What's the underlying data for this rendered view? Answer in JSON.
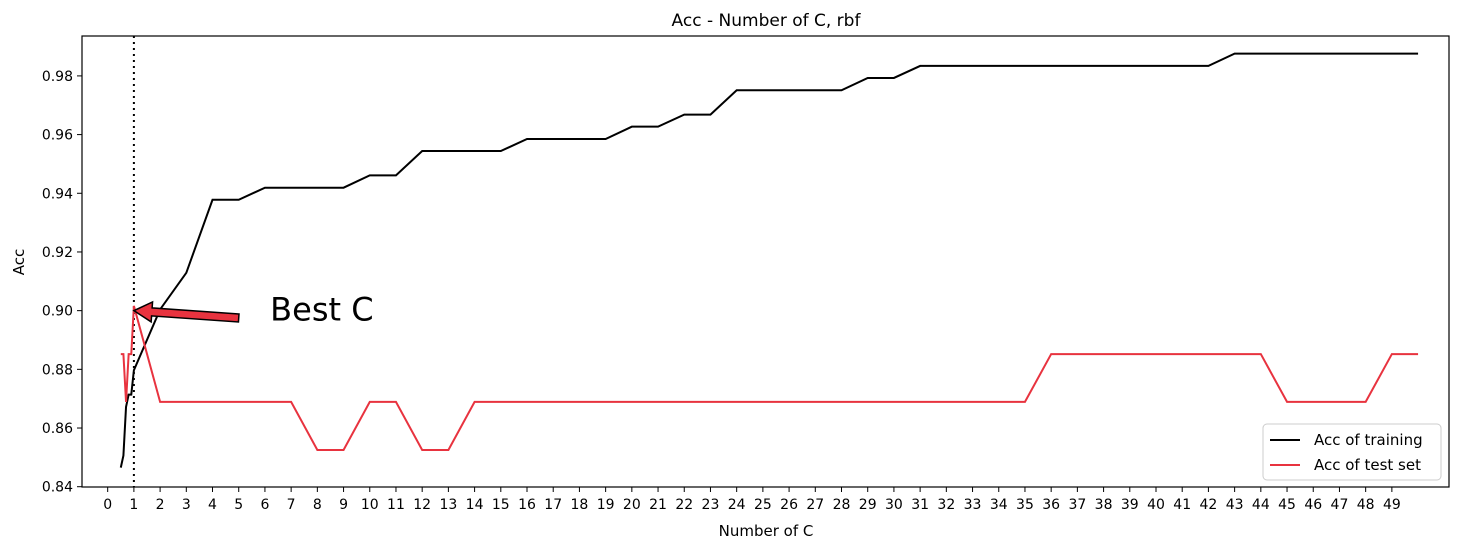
{
  "chart_data": {
    "type": "line",
    "title": "Acc - Number of C, rbf",
    "xlabel": "Number of C",
    "ylabel": "Acc",
    "xlim": [
      -0.98,
      51.18
    ],
    "ylim": [
      0.8399,
      0.9936
    ],
    "xticks": [
      0,
      1,
      2,
      3,
      4,
      5,
      6,
      7,
      8,
      9,
      10,
      11,
      12,
      13,
      14,
      15,
      16,
      17,
      18,
      19,
      20,
      21,
      22,
      23,
      24,
      25,
      26,
      27,
      28,
      29,
      30,
      31,
      32,
      33,
      34,
      35,
      36,
      37,
      38,
      39,
      40,
      41,
      42,
      43,
      44,
      45,
      46,
      47,
      48,
      49
    ],
    "yticks": [
      0.84,
      0.86,
      0.88,
      0.9,
      0.92,
      0.94,
      0.96,
      0.98
    ],
    "ytick_labels": [
      "0.84",
      "0.86",
      "0.88",
      "0.90",
      "0.92",
      "0.94",
      "0.96",
      "0.98"
    ],
    "grid": false,
    "legend_position": "lower-right",
    "x": [
      0.5,
      0.6,
      0.7,
      0.8,
      0.9,
      1,
      2,
      3,
      4,
      5,
      6,
      7,
      8,
      9,
      10,
      11,
      12,
      13,
      14,
      15,
      16,
      17,
      18,
      19,
      20,
      21,
      22,
      23,
      24,
      25,
      26,
      27,
      28,
      29,
      30,
      31,
      32,
      33,
      34,
      35,
      36,
      37,
      38,
      39,
      40,
      41,
      42,
      43,
      44,
      45,
      46,
      47,
      48,
      49,
      50
    ],
    "series": [
      {
        "name": "Acc of training",
        "color": "#000000",
        "values": [
          0.8465,
          0.8506,
          0.8672,
          0.8714,
          0.8714,
          0.8797,
          0.9004,
          0.9129,
          0.9378,
          0.9378,
          0.9419,
          0.9419,
          0.9419,
          0.9419,
          0.9461,
          0.9461,
          0.9544,
          0.9544,
          0.9544,
          0.9544,
          0.9585,
          0.9585,
          0.9585,
          0.9585,
          0.9627,
          0.9627,
          0.9668,
          0.9668,
          0.9751,
          0.9751,
          0.9751,
          0.9751,
          0.9751,
          0.9793,
          0.9793,
          0.9834,
          0.9834,
          0.9834,
          0.9834,
          0.9834,
          0.9834,
          0.9834,
          0.9834,
          0.9834,
          0.9834,
          0.9834,
          0.9834,
          0.9876,
          0.9876,
          0.9876,
          0.9876,
          0.9876,
          0.9876,
          0.9876,
          0.9876
        ]
      },
      {
        "name": "Acc of test set",
        "color": "#e8333f",
        "values": [
          0.8852,
          0.8852,
          0.8689,
          0.8852,
          0.8852,
          0.9016,
          0.8689,
          0.8689,
          0.8689,
          0.8689,
          0.8689,
          0.8689,
          0.8525,
          0.8525,
          0.8689,
          0.8689,
          0.8525,
          0.8525,
          0.8689,
          0.8689,
          0.8689,
          0.8689,
          0.8689,
          0.8689,
          0.8689,
          0.8689,
          0.8689,
          0.8689,
          0.8689,
          0.8689,
          0.8689,
          0.8689,
          0.8689,
          0.8689,
          0.8689,
          0.8689,
          0.8689,
          0.8689,
          0.8689,
          0.8689,
          0.8852,
          0.8852,
          0.8852,
          0.8852,
          0.8852,
          0.8852,
          0.8852,
          0.8852,
          0.8852,
          0.8689,
          0.8689,
          0.8689,
          0.8689,
          0.8852,
          0.8852
        ]
      }
    ],
    "vline": {
      "x": 1,
      "style": "dotted",
      "color": "#000000"
    },
    "annotation": {
      "text": "Best C",
      "text_x": 6.2,
      "text_y": 0.8967,
      "arrow_from": [
        5,
        0.8975
      ],
      "arrow_to": [
        1,
        0.9
      ],
      "arrow_color": "#e8333f"
    }
  }
}
